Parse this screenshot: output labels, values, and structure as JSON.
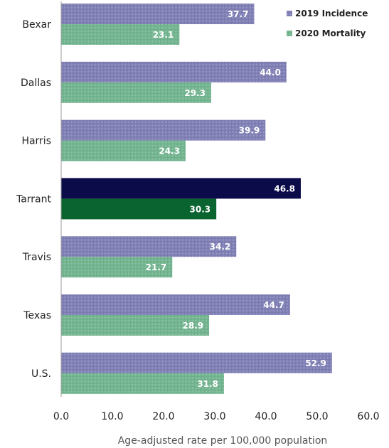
{
  "chart_data": {
    "type": "bar",
    "orientation": "horizontal",
    "categories": [
      "Bexar",
      "Dallas",
      "Harris",
      "Tarrant",
      "Travis",
      "Texas",
      "U.S."
    ],
    "series": [
      {
        "name": "2019 Incidence",
        "values": [
          37.7,
          44.0,
          39.9,
          46.8,
          34.2,
          44.7,
          52.9
        ],
        "value_labels": [
          "37.7",
          "44.0",
          "39.9",
          "46.8",
          "34.2",
          "44.7",
          "52.9"
        ],
        "color": "#7b7bb0",
        "highlight_color": "#0b0b4a"
      },
      {
        "name": "2020 Mortality",
        "values": [
          23.1,
          29.3,
          24.3,
          30.3,
          21.7,
          28.9,
          31.8
        ],
        "value_labels": [
          "23.1",
          "29.3",
          "24.3",
          "30.3",
          "21.7",
          "28.9",
          "31.8"
        ],
        "color": "#6fb08c",
        "highlight_color": "#0a6430"
      }
    ],
    "highlight_category": "Tarrant",
    "xlabel": "Age-adjusted rate per 100,000 population",
    "xlim": [
      0,
      60
    ],
    "x_ticks": [
      "0.0",
      "10.0",
      "20.0",
      "30.0",
      "40.0",
      "50.0",
      "60.0"
    ],
    "grid": false,
    "legend_position": "top-right"
  }
}
